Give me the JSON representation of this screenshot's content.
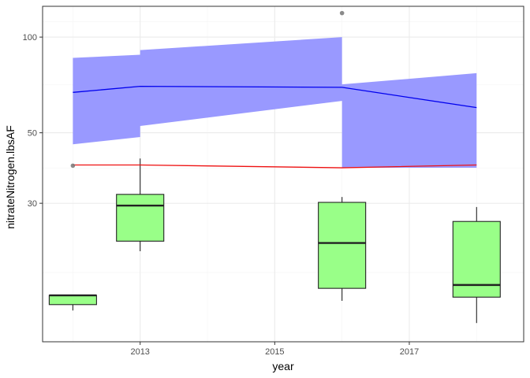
{
  "chart_data": {
    "type": "boxplot",
    "xlabel": "year",
    "ylabel": "nitrateNitrogen.lbsAF",
    "xlim": [
      2011.55,
      2018.7
    ],
    "ylim": [
      11,
      125
    ],
    "y_scale": "log",
    "x_ticks": [
      2013,
      2015,
      2017
    ],
    "y_ticks": [
      30,
      50,
      100
    ],
    "grid": true,
    "colors": {
      "box_fill": "#99ff88",
      "box_line": "#222222",
      "band_fill": "#9999ff",
      "mean_line": "#0000ee",
      "red_line": "#ee1111",
      "outlier": "#777777",
      "panel_border": "#333333",
      "grid_major": "#ebebeb",
      "grid_minor": "#f4f4f4"
    },
    "boxes": [
      {
        "x": 2012,
        "whisker_low": 13.8,
        "q1": 14.4,
        "median": 15.4,
        "q3": 15.4,
        "whisker_high": 15.4
      },
      {
        "x": 2013,
        "whisker_low": 21.2,
        "q1": 22.8,
        "median": 29.5,
        "q3": 32.0,
        "whisker_high": 41.5
      },
      {
        "x": 2016,
        "whisker_low": 14.8,
        "q1": 16.2,
        "median": 22.5,
        "q3": 30.2,
        "whisker_high": 31.4
      },
      {
        "x": 2018,
        "whisker_low": 12.6,
        "q1": 15.2,
        "median": 16.6,
        "q3": 26.3,
        "whisker_high": 29.2
      }
    ],
    "outliers": [
      {
        "x": 2012,
        "y": 39.4
      },
      {
        "x": 2016,
        "y": 119
      }
    ],
    "band": [
      {
        "x": 2012,
        "lower": 46,
        "upper": 86
      },
      {
        "x": 2013,
        "lower": 48.5,
        "upper": 88
      },
      {
        "x": 2013,
        "lower": 52.5,
        "upper": 91
      },
      {
        "x": 2016,
        "lower": 63,
        "upper": 100
      },
      {
        "x": 2016,
        "lower": 38.8,
        "upper": 71
      },
      {
        "x": 2018,
        "lower": 38.8,
        "upper": 77
      }
    ],
    "mean_line": [
      {
        "x": 2012,
        "y": 67
      },
      {
        "x": 2013,
        "y": 70
      },
      {
        "x": 2016,
        "y": 69.5
      },
      {
        "x": 2018,
        "y": 60
      }
    ],
    "red_line": [
      {
        "x": 2012,
        "y": 39.6
      },
      {
        "x": 2013,
        "y": 39.6
      },
      {
        "x": 2016,
        "y": 38.8
      },
      {
        "x": 2018,
        "y": 39.6
      }
    ]
  }
}
